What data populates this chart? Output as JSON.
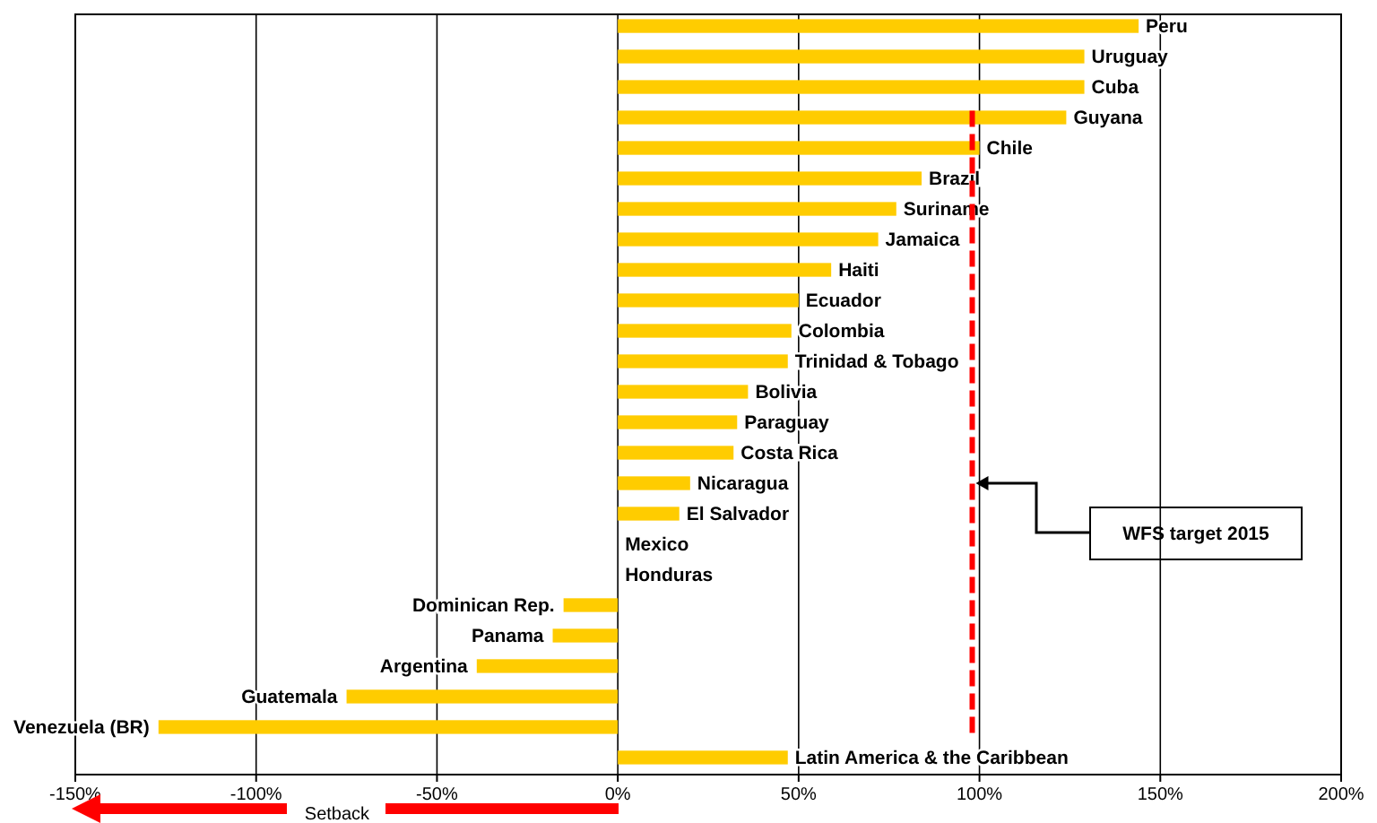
{
  "chart_data": {
    "type": "bar",
    "orientation": "horizontal",
    "categories": [
      "Peru",
      "Uruguay",
      "Cuba",
      "Guyana",
      "Chile",
      "Brazil",
      "Suriname",
      "Jamaica",
      "Haiti",
      "Ecuador",
      "Colombia",
      "Trinidad & Tobago",
      "Bolivia",
      "Paraguay",
      "Costa Rica",
      "Nicaragua",
      "El Salvador",
      "Mexico",
      "Honduras",
      "Dominican Rep.",
      "Panama",
      "Argentina",
      "Guatemala",
      "Venezuela (BR)",
      "Latin America  & the Caribbean"
    ],
    "values": [
      144,
      129,
      129,
      124,
      100,
      84,
      77,
      72,
      59,
      50,
      48,
      47,
      36,
      33,
      32,
      20,
      17,
      0,
      0,
      -15,
      -18,
      -39,
      -75,
      -127,
      47
    ],
    "color": "#ffcc00",
    "xlim": [
      -150,
      200
    ],
    "xticks": [
      {
        "value": -150,
        "label": "-150%"
      },
      {
        "value": -100,
        "label": "-100%"
      },
      {
        "value": -50,
        "label": "-50%"
      },
      {
        "value": 0,
        "label": "0%"
      },
      {
        "value": 50,
        "label": "50%"
      },
      {
        "value": 100,
        "label": "100%"
      },
      {
        "value": 150,
        "label": "150%"
      },
      {
        "value": 200,
        "label": "200%"
      }
    ],
    "grid": "x",
    "ref_lines": [
      {
        "axis": "x",
        "value": 98,
        "color": "#ff0000",
        "line_style": "dashed"
      }
    ],
    "annotations": [
      "Setback",
      "WFS target 2015"
    ]
  }
}
